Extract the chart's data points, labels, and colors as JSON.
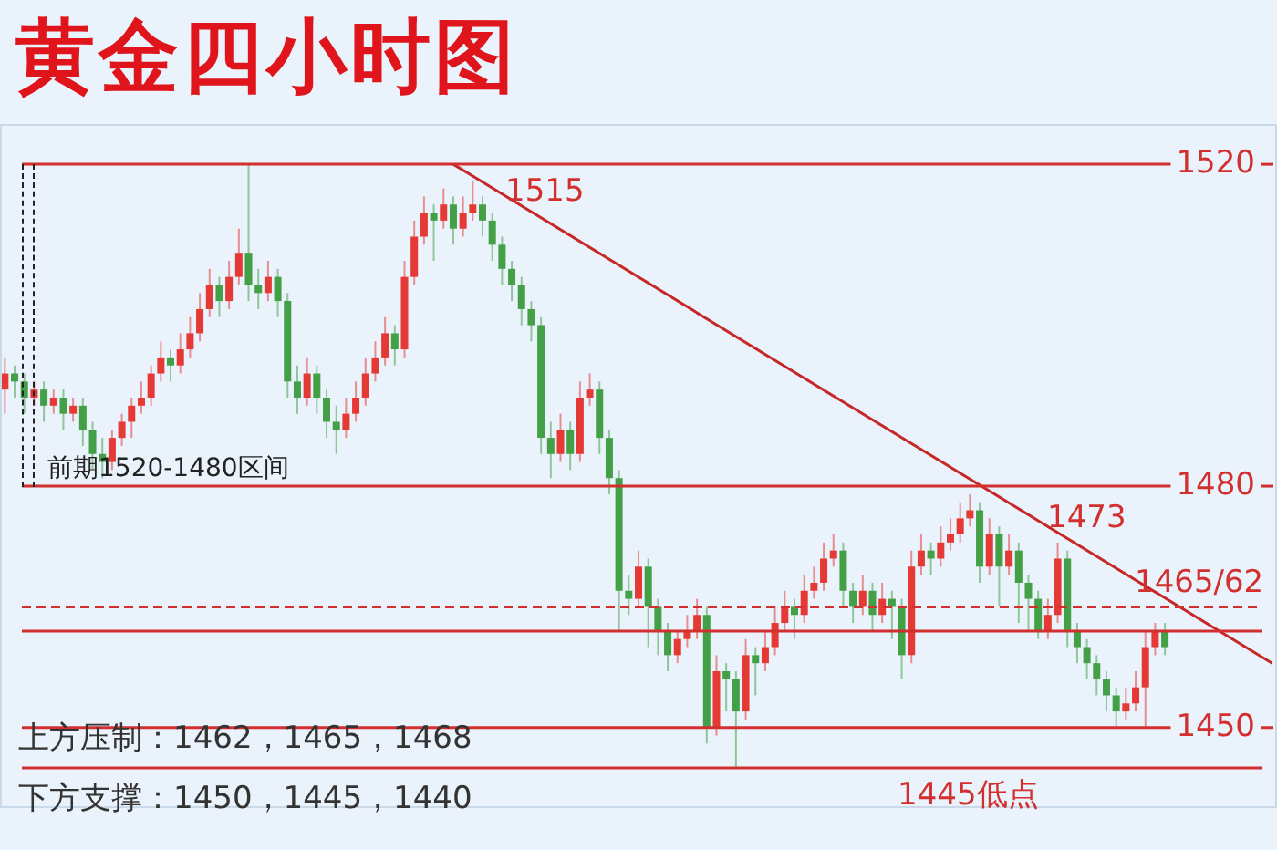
{
  "chart_data": {
    "type": "candlestick",
    "title": "黄金四小时图",
    "categories": [
      null,
      null,
      null,
      null,
      null,
      null,
      null,
      null,
      null,
      null,
      null,
      null,
      null,
      null,
      null,
      null,
      null,
      null,
      null,
      null,
      null,
      null,
      null,
      null,
      null,
      null,
      null,
      null,
      null,
      null,
      null,
      null,
      null,
      null,
      null,
      null,
      null,
      null,
      null,
      null,
      null,
      null,
      null,
      null,
      null,
      null,
      null,
      null,
      null,
      null,
      null,
      null,
      null,
      null,
      null,
      null,
      null,
      null,
      null,
      null,
      null,
      null,
      null,
      null,
      null,
      null,
      null,
      null,
      null,
      null,
      null,
      null,
      null,
      null,
      null,
      null,
      null,
      null,
      null,
      null,
      null,
      null,
      null,
      null,
      null,
      null,
      null,
      null,
      null,
      null,
      null,
      null,
      null,
      null,
      null,
      null,
      null,
      null,
      null,
      null,
      null,
      null,
      null,
      null,
      null,
      null,
      null,
      null,
      null,
      null,
      null,
      null,
      null,
      null,
      null,
      null,
      null,
      null,
      null,
      null,
      null,
      null,
      null,
      null,
      null,
      null,
      null,
      null,
      null,
      null,
      null
    ],
    "ohlc": [
      [
        1492,
        1496,
        1489,
        1494
      ],
      [
        1494,
        1495,
        1491,
        1493
      ],
      [
        1493,
        1494,
        1489,
        1491
      ],
      [
        1491,
        1493,
        1490,
        1492
      ],
      [
        1492,
        1493,
        1488,
        1490
      ],
      [
        1490,
        1492,
        1489,
        1491
      ],
      [
        1491,
        1492,
        1487,
        1489
      ],
      [
        1489,
        1491,
        1488,
        1490
      ],
      [
        1490,
        1491,
        1485,
        1487
      ],
      [
        1487,
        1488,
        1482,
        1484
      ],
      [
        1484,
        1486,
        1481,
        1483
      ],
      [
        1483,
        1487,
        1482,
        1486
      ],
      [
        1486,
        1489,
        1485,
        1488
      ],
      [
        1488,
        1491,
        1486,
        1490
      ],
      [
        1490,
        1493,
        1489,
        1491
      ],
      [
        1491,
        1495,
        1490,
        1494
      ],
      [
        1494,
        1498,
        1493,
        1496
      ],
      [
        1496,
        1497,
        1493,
        1495
      ],
      [
        1495,
        1499,
        1494,
        1497
      ],
      [
        1497,
        1501,
        1496,
        1499
      ],
      [
        1499,
        1504,
        1498,
        1502
      ],
      [
        1502,
        1507,
        1501,
        1505
      ],
      [
        1505,
        1506,
        1501,
        1503
      ],
      [
        1503,
        1508,
        1502,
        1506
      ],
      [
        1506,
        1512,
        1505,
        1509
      ],
      [
        1509,
        1520,
        1503,
        1505
      ],
      [
        1505,
        1507,
        1502,
        1504
      ],
      [
        1504,
        1508,
        1503,
        1506
      ],
      [
        1506,
        1507,
        1501,
        1503
      ],
      [
        1503,
        1504,
        1491,
        1493
      ],
      [
        1493,
        1495,
        1489,
        1491
      ],
      [
        1491,
        1496,
        1490,
        1494
      ],
      [
        1494,
        1495,
        1489,
        1491
      ],
      [
        1491,
        1492,
        1486,
        1488
      ],
      [
        1488,
        1490,
        1484,
        1487
      ],
      [
        1487,
        1491,
        1486,
        1489
      ],
      [
        1489,
        1493,
        1488,
        1491
      ],
      [
        1491,
        1496,
        1490,
        1494
      ],
      [
        1494,
        1498,
        1493,
        1496
      ],
      [
        1496,
        1501,
        1495,
        1499
      ],
      [
        1499,
        1500,
        1495,
        1497
      ],
      [
        1497,
        1508,
        1496,
        1506
      ],
      [
        1506,
        1513,
        1505,
        1511
      ],
      [
        1511,
        1516,
        1510,
        1514
      ],
      [
        1514,
        1515,
        1508,
        1513
      ],
      [
        1513,
        1517,
        1512,
        1515
      ],
      [
        1515,
        1516,
        1510,
        1512
      ],
      [
        1512,
        1516,
        1511,
        1514
      ],
      [
        1514,
        1518,
        1513,
        1515
      ],
      [
        1515,
        1516,
        1511,
        1513
      ],
      [
        1513,
        1514,
        1508,
        1510
      ],
      [
        1510,
        1511,
        1505,
        1507
      ],
      [
        1507,
        1508,
        1503,
        1505
      ],
      [
        1505,
        1506,
        1500,
        1502
      ],
      [
        1502,
        1503,
        1498,
        1500
      ],
      [
        1500,
        1501,
        1484,
        1486
      ],
      [
        1486,
        1488,
        1481,
        1484
      ],
      [
        1484,
        1489,
        1483,
        1487
      ],
      [
        1487,
        1488,
        1482,
        1484
      ],
      [
        1484,
        1493,
        1483,
        1491
      ],
      [
        1491,
        1494,
        1490,
        1492
      ],
      [
        1492,
        1493,
        1484,
        1486
      ],
      [
        1486,
        1487,
        1479,
        1481
      ],
      [
        1481,
        1482,
        1462,
        1467
      ],
      [
        1467,
        1469,
        1464,
        1466
      ],
      [
        1466,
        1472,
        1465,
        1470
      ],
      [
        1470,
        1471,
        1460,
        1465
      ],
      [
        1465,
        1466,
        1459,
        1462
      ],
      [
        1462,
        1463,
        1457,
        1459
      ],
      [
        1459,
        1462,
        1458,
        1461
      ],
      [
        1461,
        1464,
        1460,
        1462
      ],
      [
        1462,
        1466,
        1461,
        1464
      ],
      [
        1464,
        1465,
        1448,
        1450
      ],
      [
        1450,
        1459,
        1449,
        1457
      ],
      [
        1457,
        1458,
        1452,
        1456
      ],
      [
        1456,
        1457,
        1445,
        1452
      ],
      [
        1452,
        1461,
        1451,
        1459
      ],
      [
        1459,
        1460,
        1454,
        1458
      ],
      [
        1458,
        1462,
        1457,
        1460
      ],
      [
        1460,
        1465,
        1459,
        1463
      ],
      [
        1463,
        1467,
        1462,
        1465
      ],
      [
        1465,
        1466,
        1461,
        1464
      ],
      [
        1464,
        1469,
        1463,
        1467
      ],
      [
        1467,
        1470,
        1466,
        1468
      ],
      [
        1468,
        1473,
        1467,
        1471
      ],
      [
        1471,
        1474,
        1470,
        1472
      ],
      [
        1472,
        1473,
        1465,
        1467
      ],
      [
        1467,
        1468,
        1463,
        1465
      ],
      [
        1465,
        1469,
        1464,
        1467
      ],
      [
        1467,
        1468,
        1462,
        1464
      ],
      [
        1464,
        1468,
        1463,
        1466
      ],
      [
        1466,
        1467,
        1461,
        1465
      ],
      [
        1465,
        1466,
        1456,
        1459
      ],
      [
        1459,
        1472,
        1458,
        1470
      ],
      [
        1470,
        1474,
        1469,
        1472
      ],
      [
        1472,
        1473,
        1469,
        1471
      ],
      [
        1471,
        1475,
        1470,
        1473
      ],
      [
        1473,
        1476,
        1472,
        1474
      ],
      [
        1474,
        1478,
        1473,
        1476
      ],
      [
        1476,
        1479,
        1475,
        1477
      ],
      [
        1477,
        1478,
        1468,
        1470
      ],
      [
        1470,
        1476,
        1469,
        1474
      ],
      [
        1474,
        1475,
        1465,
        1470
      ],
      [
        1470,
        1474,
        1469,
        1472
      ],
      [
        1472,
        1473,
        1463,
        1468
      ],
      [
        1468,
        1469,
        1462,
        1466
      ],
      [
        1466,
        1467,
        1461,
        1462
      ],
      [
        1462,
        1466,
        1461,
        1464
      ],
      [
        1464,
        1473,
        1463,
        1471
      ],
      [
        1471,
        1472,
        1460,
        1462
      ],
      [
        1462,
        1463,
        1458,
        1460
      ],
      [
        1460,
        1461,
        1456,
        1458
      ],
      [
        1458,
        1459,
        1454,
        1456
      ],
      [
        1456,
        1457,
        1452,
        1454
      ],
      [
        1454,
        1455,
        1450,
        1452
      ],
      [
        1452,
        1455,
        1451,
        1453
      ],
      [
        1453,
        1457,
        1452,
        1455
      ],
      [
        1455,
        1462,
        1450,
        1460
      ],
      [
        1460,
        1463,
        1459,
        1462
      ],
      [
        1462,
        1463,
        1459,
        1460
      ],
      null,
      null,
      null,
      null,
      null,
      null,
      null,
      null,
      null,
      null,
      null
    ],
    "colors": [
      "#e53935",
      "#43a047",
      "#43a047",
      "#e53935",
      "#43a047",
      "#e53935",
      "#43a047",
      "#e53935",
      "#43a047",
      "#43a047",
      "#43a047",
      "#e53935",
      "#e53935",
      "#e53935",
      "#e53935",
      "#e53935",
      "#e53935",
      "#43a047",
      "#e53935",
      "#e53935",
      "#e53935",
      "#e53935",
      "#43a047",
      "#e53935",
      "#e53935",
      "#43a047",
      "#43a047",
      "#e53935",
      "#43a047",
      "#43a047",
      "#43a047",
      "#e53935",
      "#43a047",
      "#43a047",
      "#43a047",
      "#e53935",
      "#e53935",
      "#e53935",
      "#e53935",
      "#e53935",
      "#43a047",
      "#e53935",
      "#e53935",
      "#e53935",
      "#43a047",
      "#e53935",
      "#43a047",
      "#e53935",
      "#e53935",
      "#43a047",
      "#43a047",
      "#43a047",
      "#43a047",
      "#43a047",
      "#43a047",
      "#43a047",
      "#43a047",
      "#e53935",
      "#43a047",
      "#e53935",
      "#e53935",
      "#43a047",
      "#43a047",
      "#43a047",
      "#43a047",
      "#e53935",
      "#43a047",
      "#43a047",
      "#43a047",
      "#e53935",
      "#e53935",
      "#e53935",
      "#43a047",
      "#e53935",
      "#43a047",
      "#43a047",
      "#e53935",
      "#43a047",
      "#e53935",
      "#e53935",
      "#e53935",
      "#43a047",
      "#e53935",
      "#e53935",
      "#e53935",
      "#e53935",
      "#43a047",
      "#43a047",
      "#e53935",
      "#43a047",
      "#e53935",
      "#43a047",
      "#43a047",
      "#e53935",
      "#e53935",
      "#43a047",
      "#e53935",
      "#e53935",
      "#e53935",
      "#e53935",
      "#43a047",
      "#e53935",
      "#43a047",
      "#e53935",
      "#43a047",
      "#43a047",
      "#43a047",
      "#e53935",
      "#e53935",
      "#43a047",
      "#43a047",
      "#43a047",
      "#43a047",
      "#43a047",
      "#43a047",
      "#e53935",
      "#e53935",
      "#e53935",
      "#e53935",
      "#43a047",
      null,
      null,
      null,
      null,
      null,
      null,
      null,
      null,
      null,
      null,
      null
    ],
    "series": [
      {
        "type": "line",
        "color": "#c62828",
        "values": [
          null,
          null,
          null,
          null,
          null,
          null,
          null,
          null,
          null,
          null,
          null,
          null,
          null,
          null,
          null,
          null,
          null,
          null,
          null,
          null,
          null,
          null,
          null,
          null,
          null,
          null,
          null,
          null,
          null,
          null,
          null,
          null,
          null,
          null,
          null,
          null,
          null,
          null,
          null,
          null,
          null,
          null,
          null,
          null,
          null,
          null,
          1520,
          null,
          null,
          null,
          null,
          null,
          null,
          null,
          null,
          null,
          null,
          null,
          null,
          null,
          null,
          null,
          null,
          null,
          null,
          null,
          null,
          null,
          null,
          null,
          null,
          null,
          null,
          null,
          null,
          null,
          null,
          null,
          null,
          null,
          null,
          null,
          null,
          null,
          null,
          null,
          null,
          null,
          null,
          null,
          null,
          null,
          null,
          null,
          null,
          null,
          null,
          null,
          null,
          null,
          null,
          null,
          null,
          null,
          null,
          null,
          null,
          null,
          null,
          null,
          null,
          null,
          null,
          null,
          null,
          null,
          null,
          null,
          null,
          null,
          null,
          null,
          null,
          null,
          null,
          null,
          null,
          null,
          null,
          null,
          1458
        ]
      }
    ],
    "ylim": [
      1440,
      1525
    ],
    "yticks": [
      1450,
      1480,
      1520
    ],
    "legend": false,
    "ref_lines": [
      {
        "axis": "y",
        "value": 1520,
        "color": "#d32f2f"
      },
      {
        "axis": "y",
        "value": 1480,
        "color": "#d32f2f"
      },
      {
        "axis": "y",
        "value": 1465,
        "label": "1465/62",
        "color": "#d32f2f",
        "line_style": "dashed"
      },
      {
        "axis": "y",
        "value": 1462,
        "color": "#d32f2f"
      },
      {
        "axis": "y",
        "value": 1450,
        "color": "#d32f2f"
      },
      {
        "axis": "y",
        "value": 1445,
        "label": "1445低点",
        "color": "#d32f2f"
      }
    ],
    "annotations": [
      "前期1520-1480区间",
      "1515",
      "1473",
      "上方压制：1462，1465，1468",
      "下方支撑：1450，1445，1440"
    ]
  }
}
